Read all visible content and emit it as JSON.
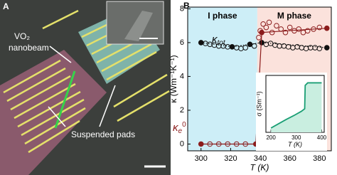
{
  "panel_a": {
    "letter": "A",
    "beam_label": [
      "VO₂",
      "nanobeam"
    ],
    "pads_label": "Suspended pads"
  },
  "panel_b": {
    "letter": "B"
  },
  "chart_data": [
    {
      "type": "line",
      "xlabel": "T (K)",
      "ylabel": "κ (Wm⁻¹K⁻¹)",
      "xlim": [
        291,
        388
      ],
      "ylim": [
        -0.4,
        8.1
      ],
      "xticks": [
        300,
        320,
        340,
        360,
        380
      ],
      "yticks": [
        0,
        2,
        4,
        6,
        8
      ],
      "phases": [
        {
          "label": "I phase",
          "color": "#cdeef7"
        },
        {
          "label": "M phase",
          "color": "#fbe2dc"
        }
      ],
      "transition_x": 338,
      "annotations": [
        {
          "text": "κ",
          "sub": "tot"
        },
        {
          "text": "κ",
          "sub": "e",
          "sup": "0"
        }
      ],
      "series": [
        {
          "color": "#111111",
          "marker": "filled",
          "line": "dotted",
          "x": [
            300,
            321,
            333,
            341,
            385
          ],
          "values": [
            6.0,
            5.75,
            5.9,
            6.0,
            5.7
          ]
        },
        {
          "color": "#111111",
          "marker": "open",
          "x": [
            303,
            306,
            309,
            312,
            315,
            318,
            324,
            327,
            330,
            336,
            344,
            347,
            350,
            353,
            356,
            359,
            362,
            365,
            368,
            371,
            374,
            377,
            380
          ],
          "values": [
            5.95,
            5.9,
            5.85,
            5.8,
            5.8,
            5.75,
            5.7,
            5.65,
            5.7,
            5.8,
            5.9,
            5.95,
            5.85,
            5.8,
            5.8,
            5.75,
            5.7,
            5.75,
            5.7,
            5.65,
            5.7,
            5.7,
            5.65
          ]
        },
        {
          "color": "#8b1c1c",
          "marker": "filled",
          "line": "solid",
          "x": [
            300,
            337,
            341,
            385
          ],
          "values": [
            0,
            0,
            6.6,
            6.85
          ]
        },
        {
          "color": "#8b1c1c",
          "marker": "open",
          "x": [
            306,
            312,
            318,
            324,
            330,
            339,
            340,
            342,
            344,
            346,
            348,
            351,
            354,
            357,
            360,
            363,
            366,
            369,
            372,
            376,
            380
          ],
          "values": [
            0,
            0,
            0,
            0,
            0,
            6.3,
            6.7,
            7.1,
            6.9,
            7.2,
            6.6,
            7.0,
            6.8,
            6.6,
            6.9,
            6.7,
            6.8,
            6.6,
            6.7,
            6.8,
            6.9
          ]
        }
      ]
    },
    {
      "type": "line",
      "ylog": true,
      "xlabel": "T (K)",
      "ylabel": "σ (Sm⁻¹)",
      "xlim": [
        180,
        410
      ],
      "ylim": [
        100,
        1000000
      ],
      "xticks": [
        200,
        300,
        400
      ],
      "series": [
        {
          "color": "#1a9e74",
          "line": "solid",
          "fill": "#c9eee0",
          "x": [
            200,
            230,
            260,
            290,
            320,
            333,
            335,
            345,
            360,
            380,
            400
          ],
          "values": [
            200,
            400,
            800,
            1500,
            3000,
            4500,
            200000,
            300000,
            300000,
            300000,
            300000
          ]
        }
      ]
    }
  ]
}
